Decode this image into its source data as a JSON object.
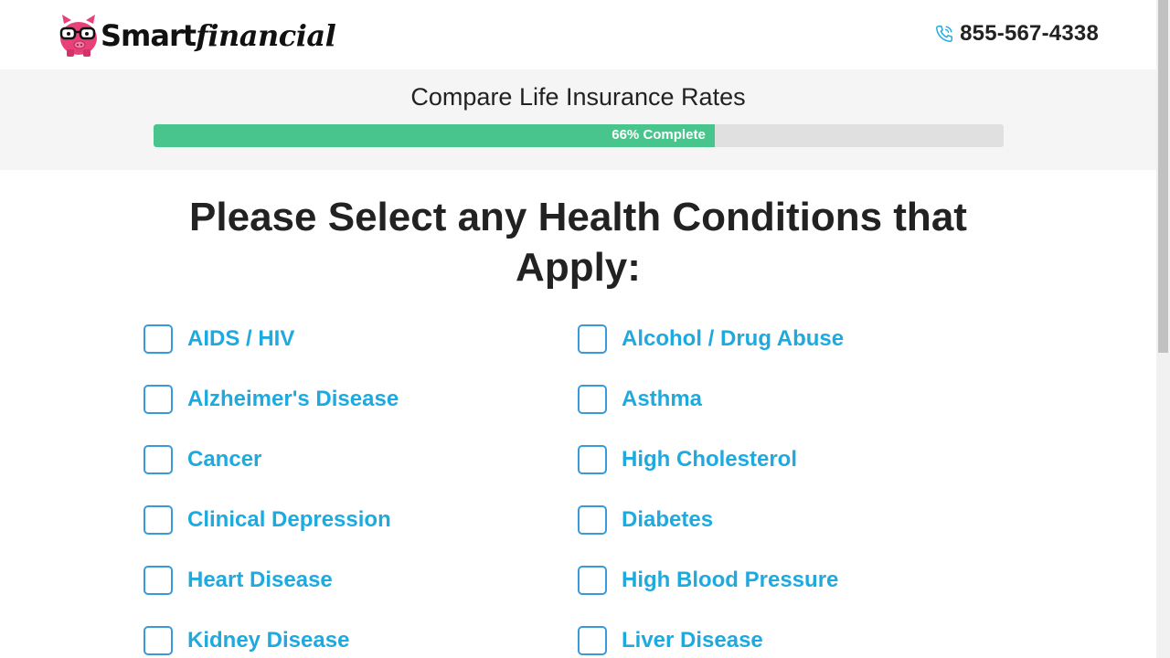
{
  "header": {
    "logo": {
      "brand_part1": "Smart",
      "brand_part2": "financial",
      "icon": "piggy-bank-glasses-icon",
      "color": "#e8417a"
    },
    "phone": {
      "icon": "phone-icon",
      "number": "855-567-4338"
    }
  },
  "progress": {
    "title": "Compare Life Insurance Rates",
    "percent": 66,
    "label": "66% Complete",
    "fill_color": "#47c58c"
  },
  "question": "Please Select any Health Conditions that Apply:",
  "conditions": [
    {
      "label": "AIDS / HIV",
      "checked": false
    },
    {
      "label": "Alcohol / Drug Abuse",
      "checked": false
    },
    {
      "label": "Alzheimer's Disease",
      "checked": false
    },
    {
      "label": "Asthma",
      "checked": false
    },
    {
      "label": "Cancer",
      "checked": false
    },
    {
      "label": "High Cholesterol",
      "checked": false
    },
    {
      "label": "Clinical Depression",
      "checked": false
    },
    {
      "label": "Diabetes",
      "checked": false
    },
    {
      "label": "Heart Disease",
      "checked": false
    },
    {
      "label": "High Blood Pressure",
      "checked": false
    },
    {
      "label": "Kidney Disease",
      "checked": false
    },
    {
      "label": "Liver Disease",
      "checked": false
    }
  ],
  "colors": {
    "accent_text": "#1eaadf",
    "checkbox_border": "#3a9ad9"
  }
}
